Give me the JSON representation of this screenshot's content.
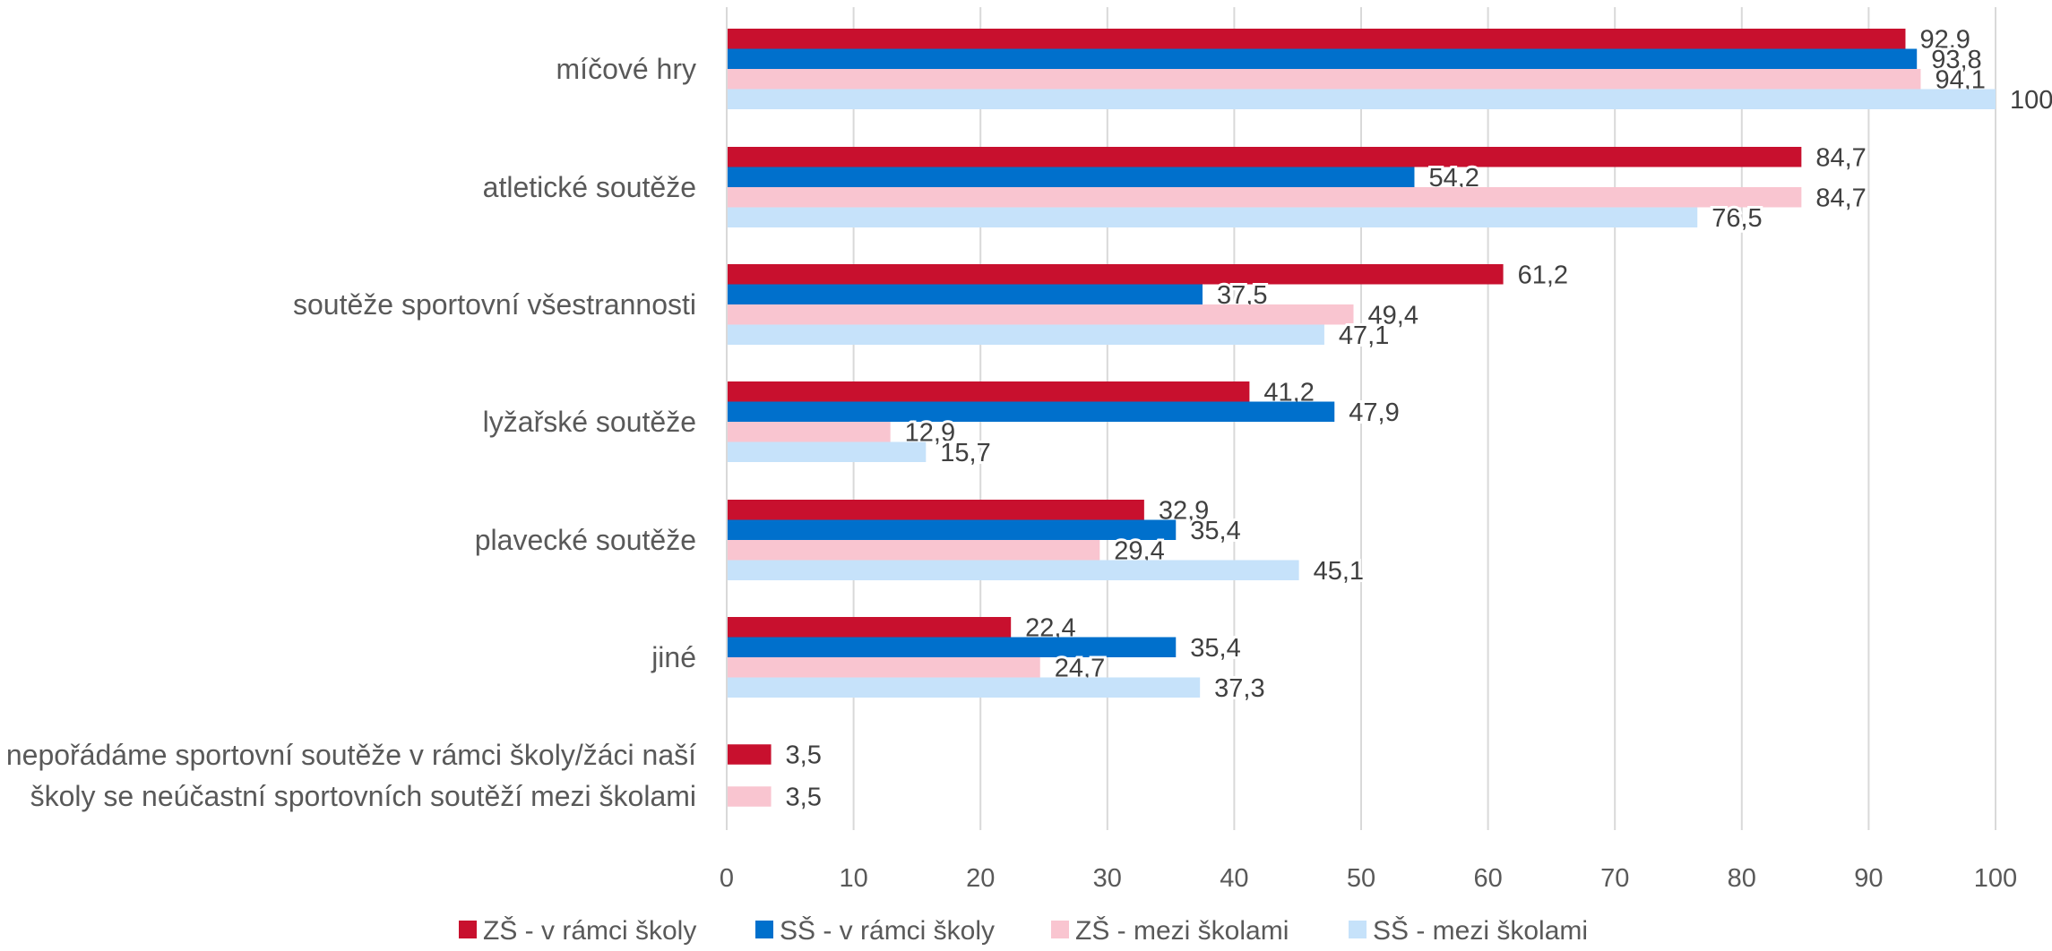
{
  "chart_data": {
    "type": "bar",
    "orientation": "horizontal",
    "categories": [
      [
        "míčové hry"
      ],
      [
        "atletické soutěže"
      ],
      [
        "soutěže sportovní všestrannosti"
      ],
      [
        "lyžařské soutěže"
      ],
      [
        "plavecké soutěže"
      ],
      [
        "jiné"
      ],
      [
        "nepořádáme sportovní soutěže v rámci školy/žáci naší",
        "školy se neúčastní sportovních soutěží mezi školami"
      ]
    ],
    "series": [
      {
        "name": "ZŠ - v rámci školy",
        "color": "#c8102e",
        "values": [
          92.9,
          84.7,
          61.2,
          41.2,
          32.9,
          22.4,
          3.5
        ],
        "labels": [
          "92,9",
          "84,7",
          "61,2",
          "41,2",
          "32,9",
          "22,4",
          "3,5"
        ]
      },
      {
        "name": "SŠ - v rámci školy",
        "color": "#0070cc",
        "values": [
          93.8,
          54.2,
          37.5,
          47.9,
          35.4,
          35.4,
          null
        ],
        "labels": [
          "93,8",
          "54,2",
          "37,5",
          "47,9",
          "35,4",
          "35,4",
          null
        ]
      },
      {
        "name": "ZŠ - mezi školami",
        "color": "#f9c5d0",
        "values": [
          94.1,
          84.7,
          49.4,
          12.9,
          29.4,
          24.7,
          3.5
        ],
        "labels": [
          "94,1",
          "84,7",
          "49,4",
          "12,9",
          "29,4",
          "24,7",
          "3,5"
        ]
      },
      {
        "name": "SŠ - mezi školami",
        "color": "#c6e2fa",
        "values": [
          100,
          76.5,
          47.1,
          15.7,
          45.1,
          37.3,
          null
        ],
        "labels": [
          "100",
          "76,5",
          "47,1",
          "15,7",
          "45,1",
          "37,3",
          null
        ]
      }
    ],
    "xlim": [
      0,
      100
    ],
    "xticks": [
      "0",
      "10",
      "20",
      "30",
      "40",
      "50",
      "60",
      "70",
      "80",
      "90",
      "100"
    ],
    "grid": true,
    "legend_position": "bottom"
  }
}
